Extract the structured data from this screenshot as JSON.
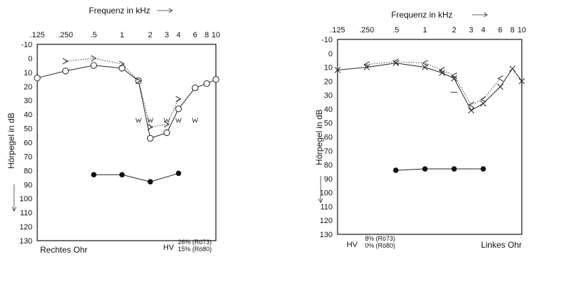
{
  "chart_data": [
    {
      "type": "line",
      "title": "Frequenz in kHz",
      "ylabel": "Hörpegel in dB",
      "ear_label": "Rechtes Ohr",
      "hv_label": "HV",
      "notes": [
        "26% (Rö73)",
        "15% (Rö80)"
      ],
      "x_ticks": [
        ".125",
        ".250",
        ".5",
        "1",
        "2",
        "3",
        "4",
        "6",
        "8",
        "10"
      ],
      "y_ticks": [
        "-10",
        "0",
        "10",
        "20",
        "30",
        "40",
        "50",
        "60",
        "70",
        "80",
        "90",
        "100",
        "110",
        "120",
        "130"
      ],
      "ylim": [
        -10,
        130
      ],
      "x_scale": "log",
      "series": [
        {
          "marker": "circle",
          "style": "solid",
          "x": [
            0.125,
            0.25,
            0.5,
            1,
            1.5,
            2,
            3,
            4,
            6,
            8,
            10
          ],
          "y": [
            14,
            9,
            5,
            7,
            16,
            57,
            53,
            36,
            21,
            18,
            15
          ]
        },
        {
          "marker": "chevron-right",
          "style": "dotted",
          "x": [
            0.25,
            0.5,
            1,
            1.5,
            2,
            3,
            4
          ],
          "y": [
            2,
            0,
            4,
            16,
            49,
            47,
            29
          ]
        },
        {
          "marker": "dot",
          "style": "solid",
          "x": [
            0.5,
            1,
            2,
            4
          ],
          "y": [
            83,
            83,
            88,
            82
          ]
        },
        {
          "marker": "w",
          "style": "none",
          "x": [
            1.5,
            2,
            3,
            4,
            6
          ],
          "y": [
            44,
            44,
            44,
            44,
            44
          ]
        }
      ]
    },
    {
      "type": "line",
      "title": "Frequenz in kHz",
      "ylabel": "Hörpegel in dB",
      "ear_label": "Linkes Ohr",
      "hv_label": "HV",
      "notes": [
        "8% (Rö73)",
        "0% (Rö80)"
      ],
      "x_ticks": [
        ".125",
        ".250",
        ".5",
        "1",
        "2",
        "3",
        "4",
        "6",
        "8",
        "10"
      ],
      "y_ticks": [
        "-10",
        "0",
        "10",
        "20",
        "30",
        "40",
        "50",
        "60",
        "70",
        "80",
        "90",
        "100",
        "110",
        "120",
        "130"
      ],
      "ylim": [
        -10,
        130
      ],
      "x_scale": "log",
      "series": [
        {
          "marker": "cross",
          "style": "solid",
          "x": [
            0.125,
            0.25,
            0.5,
            1,
            1.5,
            2,
            3,
            4,
            6,
            8,
            10
          ],
          "y": [
            12,
            10,
            7,
            10,
            14,
            18,
            41,
            36,
            24,
            11,
            20
          ]
        },
        {
          "marker": "chevron-left",
          "style": "dotted",
          "x": [
            0.25,
            0.5,
            1,
            1.5,
            2,
            3,
            4,
            6
          ],
          "y": [
            8,
            6,
            7,
            12,
            16,
            37,
            33,
            18
          ]
        },
        {
          "marker": "dot",
          "style": "solid",
          "x": [
            0.5,
            1,
            2,
            4
          ],
          "y": [
            84,
            83,
            83,
            83
          ]
        },
        {
          "marker": "dash",
          "style": "none",
          "x": [
            2
          ],
          "y": [
            28
          ]
        }
      ]
    }
  ]
}
